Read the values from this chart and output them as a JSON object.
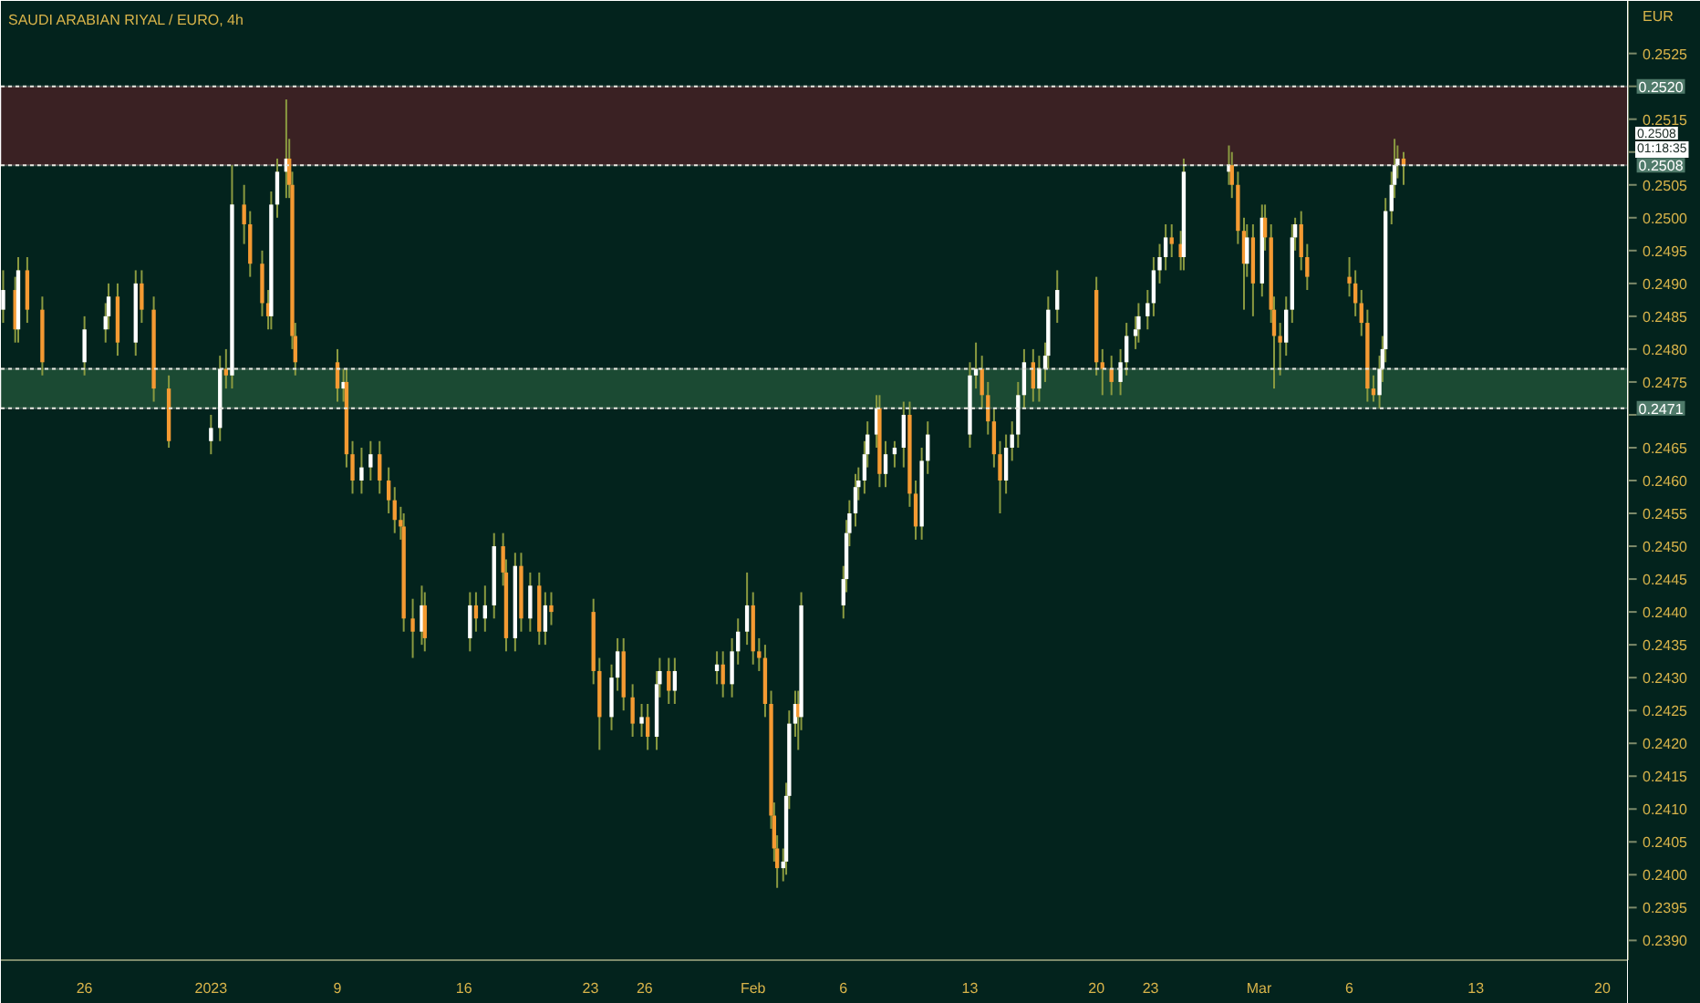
{
  "chart_data": {
    "type": "candlestick",
    "title": "SAUDI ARABIAN RIYAL / EURO, 4h",
    "ylabel": "EUR",
    "x": [
      "2022-12-21T12:00",
      "2022-12-22T04:00",
      "2022-12-22T08:00",
      "2022-12-22T20:00",
      "2022-12-23T16:00",
      "2022-12-26T00:00",
      "2022-12-27T04:00",
      "2022-12-27T08:00",
      "2022-12-27T20:00",
      "2022-12-28T20:00",
      "2022-12-29T04:00",
      "2022-12-29T20:00",
      "2022-12-30T16:00",
      "2023-01-02T00:00",
      "2023-01-02T12:00",
      "2023-01-02T20:00",
      "2023-01-03T04:00",
      "2023-01-03T20:00",
      "2023-01-04T04:00",
      "2023-01-04T20:00",
      "2023-01-05T04:00",
      "2023-01-05T08:00",
      "2023-01-05T16:00",
      "2023-01-06T04:00",
      "2023-01-06T08:00",
      "2023-01-06T12:00",
      "2023-01-06T16:00",
      "2023-01-09T00:00",
      "2023-01-09T08:00",
      "2023-01-09T12:00",
      "2023-01-09T20:00",
      "2023-01-10T08:00",
      "2023-01-10T20:00",
      "2023-01-11T08:00",
      "2023-01-11T20:00",
      "2023-01-12T04:00",
      "2023-01-12T12:00",
      "2023-01-12T16:00",
      "2023-01-13T04:00",
      "2023-01-13T16:00",
      "2023-01-13T20:00",
      "2023-01-16T08:00",
      "2023-01-16T16:00",
      "2023-01-17T04:00",
      "2023-01-17T16:00",
      "2023-01-18T04:00",
      "2023-01-18T08:00",
      "2023-01-18T20:00",
      "2023-01-19T04:00",
      "2023-01-19T16:00",
      "2023-01-20T04:00",
      "2023-01-20T12:00",
      "2023-01-20T20:00",
      "2023-01-23T04:00",
      "2023-01-23T12:00",
      "2023-01-24T04:00",
      "2023-01-24T12:00",
      "2023-01-24T20:00",
      "2023-01-25T08:00",
      "2023-01-25T20:00",
      "2023-01-26T04:00",
      "2023-01-26T16:00",
      "2023-01-26T20:00",
      "2023-01-27T08:00",
      "2023-01-27T16:00",
      "2023-01-30T00:00",
      "2023-01-30T08:00",
      "2023-01-30T20:00",
      "2023-01-31T04:00",
      "2023-01-31T16:00",
      "2023-02-01T00:00",
      "2023-02-01T08:00",
      "2023-02-01T16:00",
      "2023-02-02T00:00",
      "2023-02-02T04:00",
      "2023-02-02T08:00",
      "2023-02-02T16:00",
      "2023-02-02T20:00",
      "2023-02-03T00:00",
      "2023-02-03T08:00",
      "2023-02-03T12:00",
      "2023-02-03T16:00",
      "2023-02-06T00:00",
      "2023-02-06T04:00",
      "2023-02-06T08:00",
      "2023-02-06T16:00",
      "2023-02-06T20:00",
      "2023-02-07T04:00",
      "2023-02-07T08:00",
      "2023-02-07T20:00",
      "2023-02-08T00:00",
      "2023-02-08T08:00",
      "2023-02-08T20:00",
      "2023-02-09T08:00",
      "2023-02-09T16:00",
      "2023-02-10T00:00",
      "2023-02-10T08:00",
      "2023-02-10T16:00",
      "2023-02-13T00:00",
      "2023-02-13T08:00",
      "2023-02-13T16:00",
      "2023-02-14T00:00",
      "2023-02-14T08:00",
      "2023-02-14T16:00",
      "2023-02-15T00:00",
      "2023-02-15T08:00",
      "2023-02-15T16:00",
      "2023-02-16T00:00",
      "2023-02-16T12:00",
      "2023-02-16T20:00",
      "2023-02-17T04:00",
      "2023-02-17T08:00",
      "2023-02-17T20:00",
      "2023-02-20T00:00",
      "2023-02-20T08:00",
      "2023-02-20T20:00",
      "2023-02-21T08:00",
      "2023-02-21T16:00",
      "2023-02-22T04:00",
      "2023-02-22T08:00",
      "2023-02-22T20:00",
      "2023-02-23T04:00",
      "2023-02-23T12:00",
      "2023-02-23T20:00",
      "2023-02-24T04:00",
      "2023-02-24T16:00",
      "2023-02-24T20:00",
      "2023-02-27T08:00",
      "2023-02-27T12:00",
      "2023-02-27T20:00",
      "2023-02-28T04:00",
      "2023-02-28T08:00",
      "2023-02-28T16:00",
      "2023-03-01T04:00",
      "2023-03-01T08:00",
      "2023-03-01T16:00",
      "2023-03-01T20:00",
      "2023-03-02T04:00",
      "2023-03-02T12:00",
      "2023-03-02T20:00",
      "2023-03-03T00:00",
      "2023-03-03T08:00",
      "2023-03-03T16:00",
      "2023-03-06T00:00",
      "2023-03-06T08:00",
      "2023-03-06T16:00",
      "2023-03-07T00:00",
      "2023-03-07T08:00",
      "2023-03-07T16:00",
      "2023-03-07T20:00",
      "2023-03-08T00:00",
      "2023-03-08T08:00",
      "2023-03-08T12:00",
      "2023-03-08T16:00",
      "2023-03-09T00:00"
    ],
    "ohlc": [
      [
        0.2486,
        0.2492,
        0.2484,
        0.2489
      ],
      [
        0.2489,
        0.2491,
        0.2481,
        0.2483
      ],
      [
        0.2483,
        0.2494,
        0.2481,
        0.2492
      ],
      [
        0.2492,
        0.2494,
        0.2484,
        0.2486
      ],
      [
        0.2486,
        0.2488,
        0.2476,
        0.2478
      ],
      [
        0.2478,
        0.2485,
        0.2476,
        0.2483
      ],
      [
        0.2483,
        0.2487,
        0.2481,
        0.2485
      ],
      [
        0.2485,
        0.249,
        0.2483,
        0.2488
      ],
      [
        0.2488,
        0.249,
        0.2479,
        0.2481
      ],
      [
        0.2481,
        0.2492,
        0.2479,
        0.249
      ],
      [
        0.249,
        0.2492,
        0.2484,
        0.2486
      ],
      [
        0.2486,
        0.2488,
        0.2472,
        0.2474
      ],
      [
        0.2474,
        0.2476,
        0.2465,
        0.2466
      ],
      [
        0.2466,
        0.247,
        0.2464,
        0.2468
      ],
      [
        0.2468,
        0.2479,
        0.2466,
        0.2477
      ],
      [
        0.2477,
        0.248,
        0.2474,
        0.2476
      ],
      [
        0.2476,
        0.2508,
        0.2474,
        0.2502
      ],
      [
        0.2502,
        0.2505,
        0.2496,
        0.2499
      ],
      [
        0.2499,
        0.2501,
        0.2491,
        0.2493
      ],
      [
        0.2493,
        0.2495,
        0.2485,
        0.2487
      ],
      [
        0.2487,
        0.2489,
        0.2483,
        0.2485
      ],
      [
        0.2485,
        0.2504,
        0.2483,
        0.2502
      ],
      [
        0.2502,
        0.2509,
        0.25,
        0.2507
      ],
      [
        0.2507,
        0.2518,
        0.2503,
        0.2509
      ],
      [
        0.2509,
        0.2512,
        0.2503,
        0.2505
      ],
      [
        0.2505,
        0.2507,
        0.248,
        0.2482
      ],
      [
        0.2482,
        0.2484,
        0.2476,
        0.2478
      ],
      [
        0.2478,
        0.248,
        0.2472,
        0.2474
      ],
      [
        0.2474,
        0.2477,
        0.2472,
        0.2475
      ],
      [
        0.2475,
        0.2477,
        0.2462,
        0.2464
      ],
      [
        0.2464,
        0.2466,
        0.2458,
        0.246
      ],
      [
        0.246,
        0.2465,
        0.2458,
        0.2462
      ],
      [
        0.2462,
        0.2466,
        0.246,
        0.2464
      ],
      [
        0.2464,
        0.2466,
        0.2458,
        0.246
      ],
      [
        0.246,
        0.2462,
        0.2455,
        0.2457
      ],
      [
        0.2457,
        0.2459,
        0.2452,
        0.2454
      ],
      [
        0.2454,
        0.2456,
        0.2451,
        0.2453
      ],
      [
        0.2453,
        0.2455,
        0.2437,
        0.2439
      ],
      [
        0.2439,
        0.2442,
        0.2433,
        0.2437
      ],
      [
        0.2437,
        0.2444,
        0.2435,
        0.2441
      ],
      [
        0.2441,
        0.2443,
        0.2434,
        0.2436
      ],
      [
        0.2436,
        0.2443,
        0.2434,
        0.2441
      ],
      [
        0.2441,
        0.2443,
        0.2437,
        0.2439
      ],
      [
        0.2439,
        0.2444,
        0.2437,
        0.2441
      ],
      [
        0.2441,
        0.2452,
        0.2439,
        0.245
      ],
      [
        0.245,
        0.2452,
        0.2444,
        0.2446
      ],
      [
        0.2446,
        0.2448,
        0.2434,
        0.2436
      ],
      [
        0.2436,
        0.2449,
        0.2434,
        0.2447
      ],
      [
        0.2447,
        0.2449,
        0.2437,
        0.2439
      ],
      [
        0.2439,
        0.2446,
        0.2437,
        0.2444
      ],
      [
        0.2444,
        0.2446,
        0.2435,
        0.2437
      ],
      [
        0.2437,
        0.2443,
        0.2435,
        0.2441
      ],
      [
        0.2441,
        0.2443,
        0.2438,
        0.244
      ],
      [
        0.244,
        0.2442,
        0.2429,
        0.2431
      ],
      [
        0.2431,
        0.2433,
        0.2419,
        0.2424
      ],
      [
        0.2424,
        0.2432,
        0.2422,
        0.243
      ],
      [
        0.243,
        0.2436,
        0.2428,
        0.2434
      ],
      [
        0.2434,
        0.2436,
        0.2425,
        0.2427
      ],
      [
        0.2427,
        0.2429,
        0.2421,
        0.2423
      ],
      [
        0.2423,
        0.2426,
        0.2421,
        0.2424
      ],
      [
        0.2424,
        0.2426,
        0.2419,
        0.2421
      ],
      [
        0.2421,
        0.2431,
        0.2419,
        0.2429
      ],
      [
        0.2429,
        0.2433,
        0.2427,
        0.2431
      ],
      [
        0.2431,
        0.2433,
        0.2426,
        0.2428
      ],
      [
        0.2428,
        0.2433,
        0.2426,
        0.2431
      ],
      [
        0.2431,
        0.2434,
        0.2429,
        0.2432
      ],
      [
        0.2432,
        0.2434,
        0.2427,
        0.2429
      ],
      [
        0.2429,
        0.2436,
        0.2427,
        0.2434
      ],
      [
        0.2434,
        0.2439,
        0.2432,
        0.2437
      ],
      [
        0.2437,
        0.2446,
        0.2435,
        0.2441
      ],
      [
        0.2441,
        0.2443,
        0.2432,
        0.2434
      ],
      [
        0.2434,
        0.2436,
        0.2431,
        0.2433
      ],
      [
        0.2433,
        0.2435,
        0.2424,
        0.2426
      ],
      [
        0.2426,
        0.2428,
        0.2407,
        0.2409
      ],
      [
        0.2409,
        0.2411,
        0.2402,
        0.2404
      ],
      [
        0.2404,
        0.2406,
        0.2398,
        0.2401
      ],
      [
        0.2401,
        0.2404,
        0.2399,
        0.2402
      ],
      [
        0.2402,
        0.2414,
        0.24,
        0.2412
      ],
      [
        0.2412,
        0.2425,
        0.241,
        0.2423
      ],
      [
        0.2423,
        0.2428,
        0.2421,
        0.2426
      ],
      [
        0.2426,
        0.2428,
        0.2419,
        0.2424
      ],
      [
        0.2424,
        0.2443,
        0.2422,
        0.2441
      ],
      [
        0.2441,
        0.2447,
        0.2439,
        0.2445
      ],
      [
        0.2445,
        0.2454,
        0.2443,
        0.2452
      ],
      [
        0.2452,
        0.2457,
        0.245,
        0.2455
      ],
      [
        0.2455,
        0.2461,
        0.2453,
        0.2459
      ],
      [
        0.2459,
        0.2462,
        0.2457,
        0.246
      ],
      [
        0.246,
        0.2466,
        0.2458,
        0.2464
      ],
      [
        0.2464,
        0.2469,
        0.2462,
        0.2467
      ],
      [
        0.2467,
        0.2473,
        0.2465,
        0.2471
      ],
      [
        0.2471,
        0.2473,
        0.2459,
        0.2461
      ],
      [
        0.2461,
        0.2466,
        0.2459,
        0.2464
      ],
      [
        0.2464,
        0.2466,
        0.2462,
        0.2465
      ],
      [
        0.2465,
        0.2472,
        0.2462,
        0.247
      ],
      [
        0.247,
        0.2472,
        0.2456,
        0.2458
      ],
      [
        0.2458,
        0.246,
        0.2451,
        0.2453
      ],
      [
        0.2453,
        0.2465,
        0.2451,
        0.2463
      ],
      [
        0.2463,
        0.2469,
        0.2461,
        0.2467
      ],
      [
        0.2467,
        0.2478,
        0.2465,
        0.2476
      ],
      [
        0.2476,
        0.2481,
        0.2474,
        0.2477
      ],
      [
        0.2477,
        0.2479,
        0.2471,
        0.2473
      ],
      [
        0.2473,
        0.2475,
        0.2467,
        0.2469
      ],
      [
        0.2469,
        0.2471,
        0.2462,
        0.2464
      ],
      [
        0.2464,
        0.2466,
        0.2455,
        0.246
      ],
      [
        0.246,
        0.2467,
        0.2458,
        0.2465
      ],
      [
        0.2465,
        0.2469,
        0.2463,
        0.2467
      ],
      [
        0.2467,
        0.2475,
        0.2465,
        0.2473
      ],
      [
        0.2473,
        0.248,
        0.2471,
        0.2478
      ],
      [
        0.2478,
        0.248,
        0.2472,
        0.2474
      ],
      [
        0.2474,
        0.2479,
        0.2472,
        0.2477
      ],
      [
        0.2477,
        0.2481,
        0.2475,
        0.2479
      ],
      [
        0.2479,
        0.2488,
        0.2477,
        0.2486
      ],
      [
        0.2486,
        0.2492,
        0.2484,
        0.2489
      ],
      [
        0.2489,
        0.2491,
        0.2476,
        0.2478
      ],
      [
        0.2478,
        0.248,
        0.2473,
        0.2477
      ],
      [
        0.2477,
        0.2479,
        0.2473,
        0.2475
      ],
      [
        0.2475,
        0.248,
        0.2473,
        0.2478
      ],
      [
        0.2478,
        0.2484,
        0.2476,
        0.2482
      ],
      [
        0.2482,
        0.2485,
        0.248,
        0.2483
      ],
      [
        0.2483,
        0.2487,
        0.2481,
        0.2485
      ],
      [
        0.2485,
        0.2489,
        0.2483,
        0.2487
      ],
      [
        0.2487,
        0.2494,
        0.2485,
        0.2492
      ],
      [
        0.2492,
        0.2496,
        0.249,
        0.2494
      ],
      [
        0.2494,
        0.2499,
        0.2492,
        0.2497
      ],
      [
        0.2497,
        0.2499,
        0.2494,
        0.2496
      ],
      [
        0.2496,
        0.2498,
        0.2492,
        0.2494
      ],
      [
        0.2494,
        0.2509,
        0.2492,
        0.2507
      ],
      [
        0.2507,
        0.2511,
        0.2505,
        0.2508
      ],
      [
        0.2508,
        0.251,
        0.2503,
        0.2505
      ],
      [
        0.2505,
        0.2507,
        0.2496,
        0.2498
      ],
      [
        0.2498,
        0.25,
        0.2486,
        0.2493
      ],
      [
        0.2493,
        0.2499,
        0.2491,
        0.2497
      ],
      [
        0.2497,
        0.2499,
        0.2485,
        0.249
      ],
      [
        0.249,
        0.2502,
        0.2488,
        0.25
      ],
      [
        0.25,
        0.2502,
        0.2495,
        0.2497
      ],
      [
        0.2497,
        0.2499,
        0.2484,
        0.2486
      ],
      [
        0.2486,
        0.2488,
        0.2474,
        0.2482
      ],
      [
        0.2482,
        0.2484,
        0.2476,
        0.2481
      ],
      [
        0.2481,
        0.2488,
        0.2479,
        0.2486
      ],
      [
        0.2486,
        0.2499,
        0.2484,
        0.2497
      ],
      [
        0.2497,
        0.25,
        0.2495,
        0.2499
      ],
      [
        0.2499,
        0.2501,
        0.2492,
        0.2494
      ],
      [
        0.2494,
        0.2496,
        0.2489,
        0.2491
      ],
      [
        0.2491,
        0.2494,
        0.2488,
        0.249
      ],
      [
        0.249,
        0.2492,
        0.2485,
        0.2487
      ],
      [
        0.2487,
        0.2489,
        0.2482,
        0.2484
      ],
      [
        0.2484,
        0.2486,
        0.2472,
        0.2474
      ],
      [
        0.2474,
        0.2476,
        0.2472,
        0.2473
      ],
      [
        0.2473,
        0.2479,
        0.2471,
        0.2477
      ],
      [
        0.2477,
        0.2482,
        0.2475,
        0.248
      ],
      [
        0.248,
        0.2503,
        0.2478,
        0.2501
      ],
      [
        0.2501,
        0.2507,
        0.2499,
        0.2505
      ],
      [
        0.2505,
        0.2512,
        0.2503,
        0.2508
      ],
      [
        0.2508,
        0.2511,
        0.2506,
        0.2509
      ],
      [
        0.2509,
        0.251,
        0.2505,
        0.2508
      ]
    ],
    "xlim": [
      "2022-12-21T09:00",
      "2023-03-21T10:00"
    ],
    "xticks": [
      {
        "value": "2022-12-26",
        "label": "26"
      },
      {
        "value": "2023-01-02",
        "label": "2023"
      },
      {
        "value": "2023-01-09",
        "label": "9"
      },
      {
        "value": "2023-01-16",
        "label": "16"
      },
      {
        "value": "2023-01-23",
        "label": "23"
      },
      {
        "value": "2023-01-26",
        "label": "26"
      },
      {
        "value": "2023-02-01",
        "label": "Feb"
      },
      {
        "value": "2023-02-06",
        "label": "6"
      },
      {
        "value": "2023-02-13",
        "label": "13"
      },
      {
        "value": "2023-02-20",
        "label": "20"
      },
      {
        "value": "2023-02-23",
        "label": "23"
      },
      {
        "value": "2023-03-01",
        "label": "Mar"
      },
      {
        "value": "2023-03-06",
        "label": "6"
      },
      {
        "value": "2023-03-13",
        "label": "13"
      },
      {
        "value": "2023-03-20",
        "label": "20"
      }
    ],
    "ylim": [
      0.2387,
      0.2533
    ],
    "yticks": [
      {
        "value": 0.239,
        "label": "0.2390"
      },
      0.2395,
      {
        "value": 0.24,
        "label": "0.2400"
      },
      0.2405,
      {
        "value": 0.241,
        "label": "0.2410"
      },
      0.2415,
      {
        "value": 0.242,
        "label": "0.2420"
      },
      0.2425,
      {
        "value": 0.243,
        "label": "0.2430"
      },
      0.2435,
      {
        "value": 0.244,
        "label": "0.2440"
      },
      0.2445,
      {
        "value": 0.245,
        "label": "0.2450"
      },
      0.2455,
      {
        "value": 0.246,
        "label": "0.2460"
      },
      0.2465,
      {
        "value": 0.247,
        "label": null
      },
      0.2475,
      {
        "value": 0.248,
        "label": "0.2480"
      },
      0.2485,
      {
        "value": 0.249,
        "label": "0.2490"
      },
      0.2495,
      {
        "value": 0.25,
        "label": "0.2500"
      },
      0.2505,
      {
        "value": 0.251,
        "label": null
      },
      0.2515,
      {
        "value": 0.252,
        "label": null
      },
      0.2525
    ],
    "bands": [
      {
        "axis": "y",
        "from": 0.2508,
        "to": 0.252,
        "color": "#3a2123"
      },
      {
        "axis": "y",
        "from": 0.2471,
        "to": 0.2477,
        "color": "#1b4a33"
      }
    ],
    "ref_lines": [
      {
        "axis": "y",
        "value": 0.252,
        "label": "0.2520",
        "line_style": "dashed"
      },
      {
        "axis": "y",
        "value": 0.2508,
        "label": "0.2508",
        "line_style": "dashed"
      },
      {
        "axis": "y",
        "value": 0.2477,
        "line_style": "dashed"
      },
      {
        "axis": "y",
        "value": 0.2471,
        "label": "0.2471",
        "line_style": "dashed"
      }
    ],
    "annotations": [
      "0.2508",
      "01:18:35"
    ],
    "grid": false
  }
}
